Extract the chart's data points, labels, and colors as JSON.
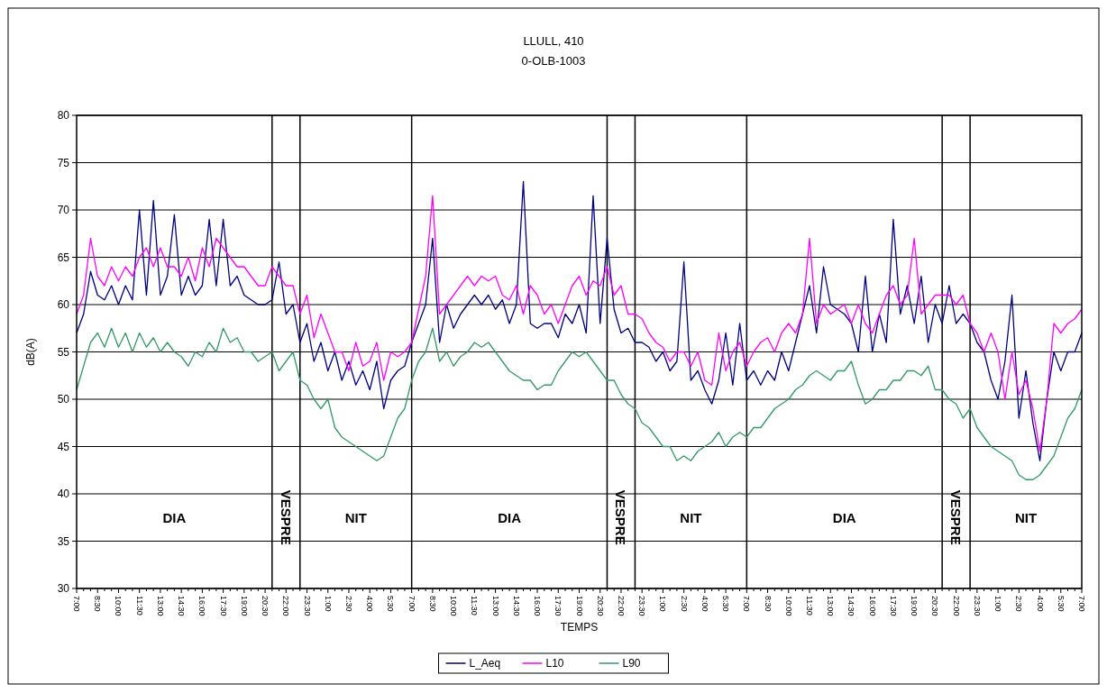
{
  "chart_data": {
    "type": "line",
    "title": "LLULL, 410",
    "subtitle": "0-OLB-1003",
    "xlabel": "TEMPS",
    "ylabel": "dB(A)",
    "categories": [
      "7:00",
      null,
      null,
      "8:30",
      null,
      null,
      "10:00",
      null,
      null,
      "11:30",
      null,
      null,
      "13:00",
      null,
      null,
      "14:30",
      null,
      null,
      "16:00",
      null,
      null,
      "17:30",
      null,
      null,
      "19:00",
      null,
      null,
      "20:30",
      null,
      null,
      "22:00",
      null,
      null,
      "23:30",
      null,
      null,
      "1:00",
      null,
      null,
      "2:30",
      null,
      null,
      "4:00",
      null,
      null,
      "5:30",
      null,
      null,
      "7:00",
      null,
      null,
      "8:30",
      null,
      null,
      "10:00",
      null,
      null,
      "11:30",
      null,
      null,
      "13:00",
      null,
      null,
      "14:30",
      null,
      null,
      "16:00",
      null,
      null,
      "17:30",
      null,
      null,
      "19:00",
      null,
      null,
      "20:30",
      null,
      null,
      "22:00",
      null,
      null,
      "23:30",
      null,
      null,
      "1:00",
      null,
      null,
      "2:30",
      null,
      null,
      "4:00",
      null,
      null,
      "5:30",
      null,
      null,
      "7:00",
      null,
      null,
      "8:30",
      null,
      null,
      "10:00",
      null,
      null,
      "11:30",
      null,
      null,
      "13:00",
      null,
      null,
      "14:30",
      null,
      null,
      "16:00",
      null,
      null,
      "17:30",
      null,
      null,
      "19:00",
      null,
      null,
      "20:30",
      null,
      null,
      "22:00",
      null,
      null,
      "23:30",
      null,
      null,
      "1:00",
      null,
      null,
      "2:30",
      null,
      null,
      "4:00",
      null,
      null,
      "5:30",
      null,
      null,
      "7:00"
    ],
    "ylim": [
      30,
      80
    ],
    "yticks": [
      30,
      35,
      40,
      45,
      50,
      55,
      60,
      65,
      70,
      75,
      80
    ],
    "grid": "y",
    "legend": "bottom",
    "marker": "none",
    "line_style": "solid",
    "annotations": [
      "DIA",
      "VESPRE",
      "NIT",
      "DIA",
      "VESPRE",
      "NIT",
      "DIA",
      "VESPRE",
      "NIT"
    ],
    "series": [
      {
        "name": "L_Aeq",
        "color": "#000080",
        "values": [
          57,
          59,
          63.5,
          61,
          60.5,
          62,
          60,
          62,
          60.5,
          70,
          61,
          71,
          61,
          63,
          69.5,
          61,
          63,
          61,
          62,
          69,
          62,
          69,
          62,
          63,
          61,
          60.5,
          60,
          60,
          60.5,
          64.5,
          59,
          60,
          56,
          58,
          54,
          56,
          53,
          55,
          52,
          54,
          51.5,
          53,
          51,
          54,
          49,
          52,
          53,
          53.5,
          56,
          58,
          60,
          67,
          56,
          60,
          57.5,
          59,
          60,
          61,
          60,
          61,
          59.5,
          60.5,
          58,
          60,
          73,
          58,
          57.5,
          58,
          58,
          56.5,
          59,
          58,
          60,
          57,
          71.5,
          58,
          67,
          59.5,
          57,
          57.5,
          56,
          56,
          55.5,
          54,
          55,
          53,
          54,
          64.5,
          52,
          53,
          51,
          49.5,
          52,
          57,
          51.5,
          58,
          52,
          53,
          51.5,
          53,
          52,
          55,
          53,
          56,
          59,
          62,
          57,
          64,
          60,
          59.5,
          59,
          58,
          55,
          63,
          55,
          59,
          56,
          69,
          59,
          62,
          58,
          63,
          56,
          60,
          58,
          62,
          58,
          59,
          58,
          56,
          55,
          52,
          50,
          54,
          61,
          48,
          53,
          47.5,
          43.5,
          50,
          55,
          53,
          55,
          55,
          57
        ]
      },
      {
        "name": "L10",
        "color": "#ff00ff",
        "values": [
          59,
          61,
          67,
          63,
          62,
          64,
          62.5,
          64,
          63,
          65,
          66,
          64,
          66,
          64,
          64,
          63,
          65,
          62.5,
          66,
          64,
          67,
          66,
          65,
          64,
          64,
          63,
          62,
          62,
          64,
          63,
          62,
          62,
          59,
          61,
          56.5,
          59,
          57,
          55,
          55,
          53,
          56,
          53.5,
          54,
          56,
          52,
          55,
          54.5,
          55,
          56,
          59.5,
          63,
          71.5,
          59,
          60,
          61,
          62,
          63,
          62,
          63,
          62.5,
          63,
          61,
          60.5,
          62,
          59,
          62,
          61,
          59,
          60,
          58,
          60,
          62,
          63,
          61,
          62.5,
          62,
          64,
          61,
          62,
          59,
          59,
          58.5,
          57,
          56,
          55.5,
          54,
          55,
          55,
          53.5,
          55,
          52,
          51.5,
          57,
          53,
          55,
          56,
          53.5,
          55,
          56,
          56.5,
          55,
          57,
          58,
          57,
          59,
          67,
          58,
          60,
          59,
          59.5,
          60,
          58,
          60,
          58,
          57,
          59,
          61,
          62,
          60,
          61,
          67,
          59,
          60,
          61,
          61,
          61,
          60,
          61,
          58,
          57,
          55,
          57,
          55,
          50,
          55,
          50.5,
          52,
          49,
          44.5,
          50,
          58,
          57,
          58,
          58.5,
          59.5
        ]
      },
      {
        "name": "L90",
        "color": "#339966",
        "values": [
          51,
          53.5,
          56,
          57,
          55.5,
          57.5,
          55.5,
          57,
          55,
          57,
          55.5,
          56.5,
          55,
          56,
          55,
          54.5,
          53.5,
          55,
          54.5,
          56,
          55,
          57.5,
          56,
          56.5,
          55,
          55,
          54,
          54.5,
          55,
          53,
          54,
          55,
          52,
          51.5,
          50,
          49,
          50,
          47,
          46,
          45.5,
          45,
          44.5,
          44,
          43.5,
          44,
          46,
          48,
          49,
          52,
          54,
          55,
          57.5,
          54,
          55,
          53.5,
          54.5,
          55,
          56,
          55.5,
          56,
          55,
          54,
          53,
          52.5,
          52,
          52,
          51,
          51.5,
          51.5,
          53,
          54,
          55,
          54.5,
          55,
          54,
          53,
          52,
          52,
          50.5,
          49.5,
          49,
          47.5,
          47,
          46,
          45,
          45,
          43.5,
          44,
          43.5,
          44.5,
          45,
          45.5,
          46.5,
          45,
          46,
          46.5,
          46,
          47,
          47,
          48,
          49,
          49.5,
          50,
          51,
          51.5,
          52.5,
          53,
          52.5,
          52,
          53,
          53,
          54,
          51.5,
          49.5,
          50,
          51,
          51,
          52,
          52,
          53,
          53,
          52.5,
          53.5,
          51,
          51,
          50,
          49.5,
          48,
          49,
          47,
          46,
          45,
          44.5,
          44,
          43.5,
          42,
          41.5,
          41.5,
          42,
          43,
          44,
          46,
          48,
          49,
          51
        ]
      }
    ]
  }
}
